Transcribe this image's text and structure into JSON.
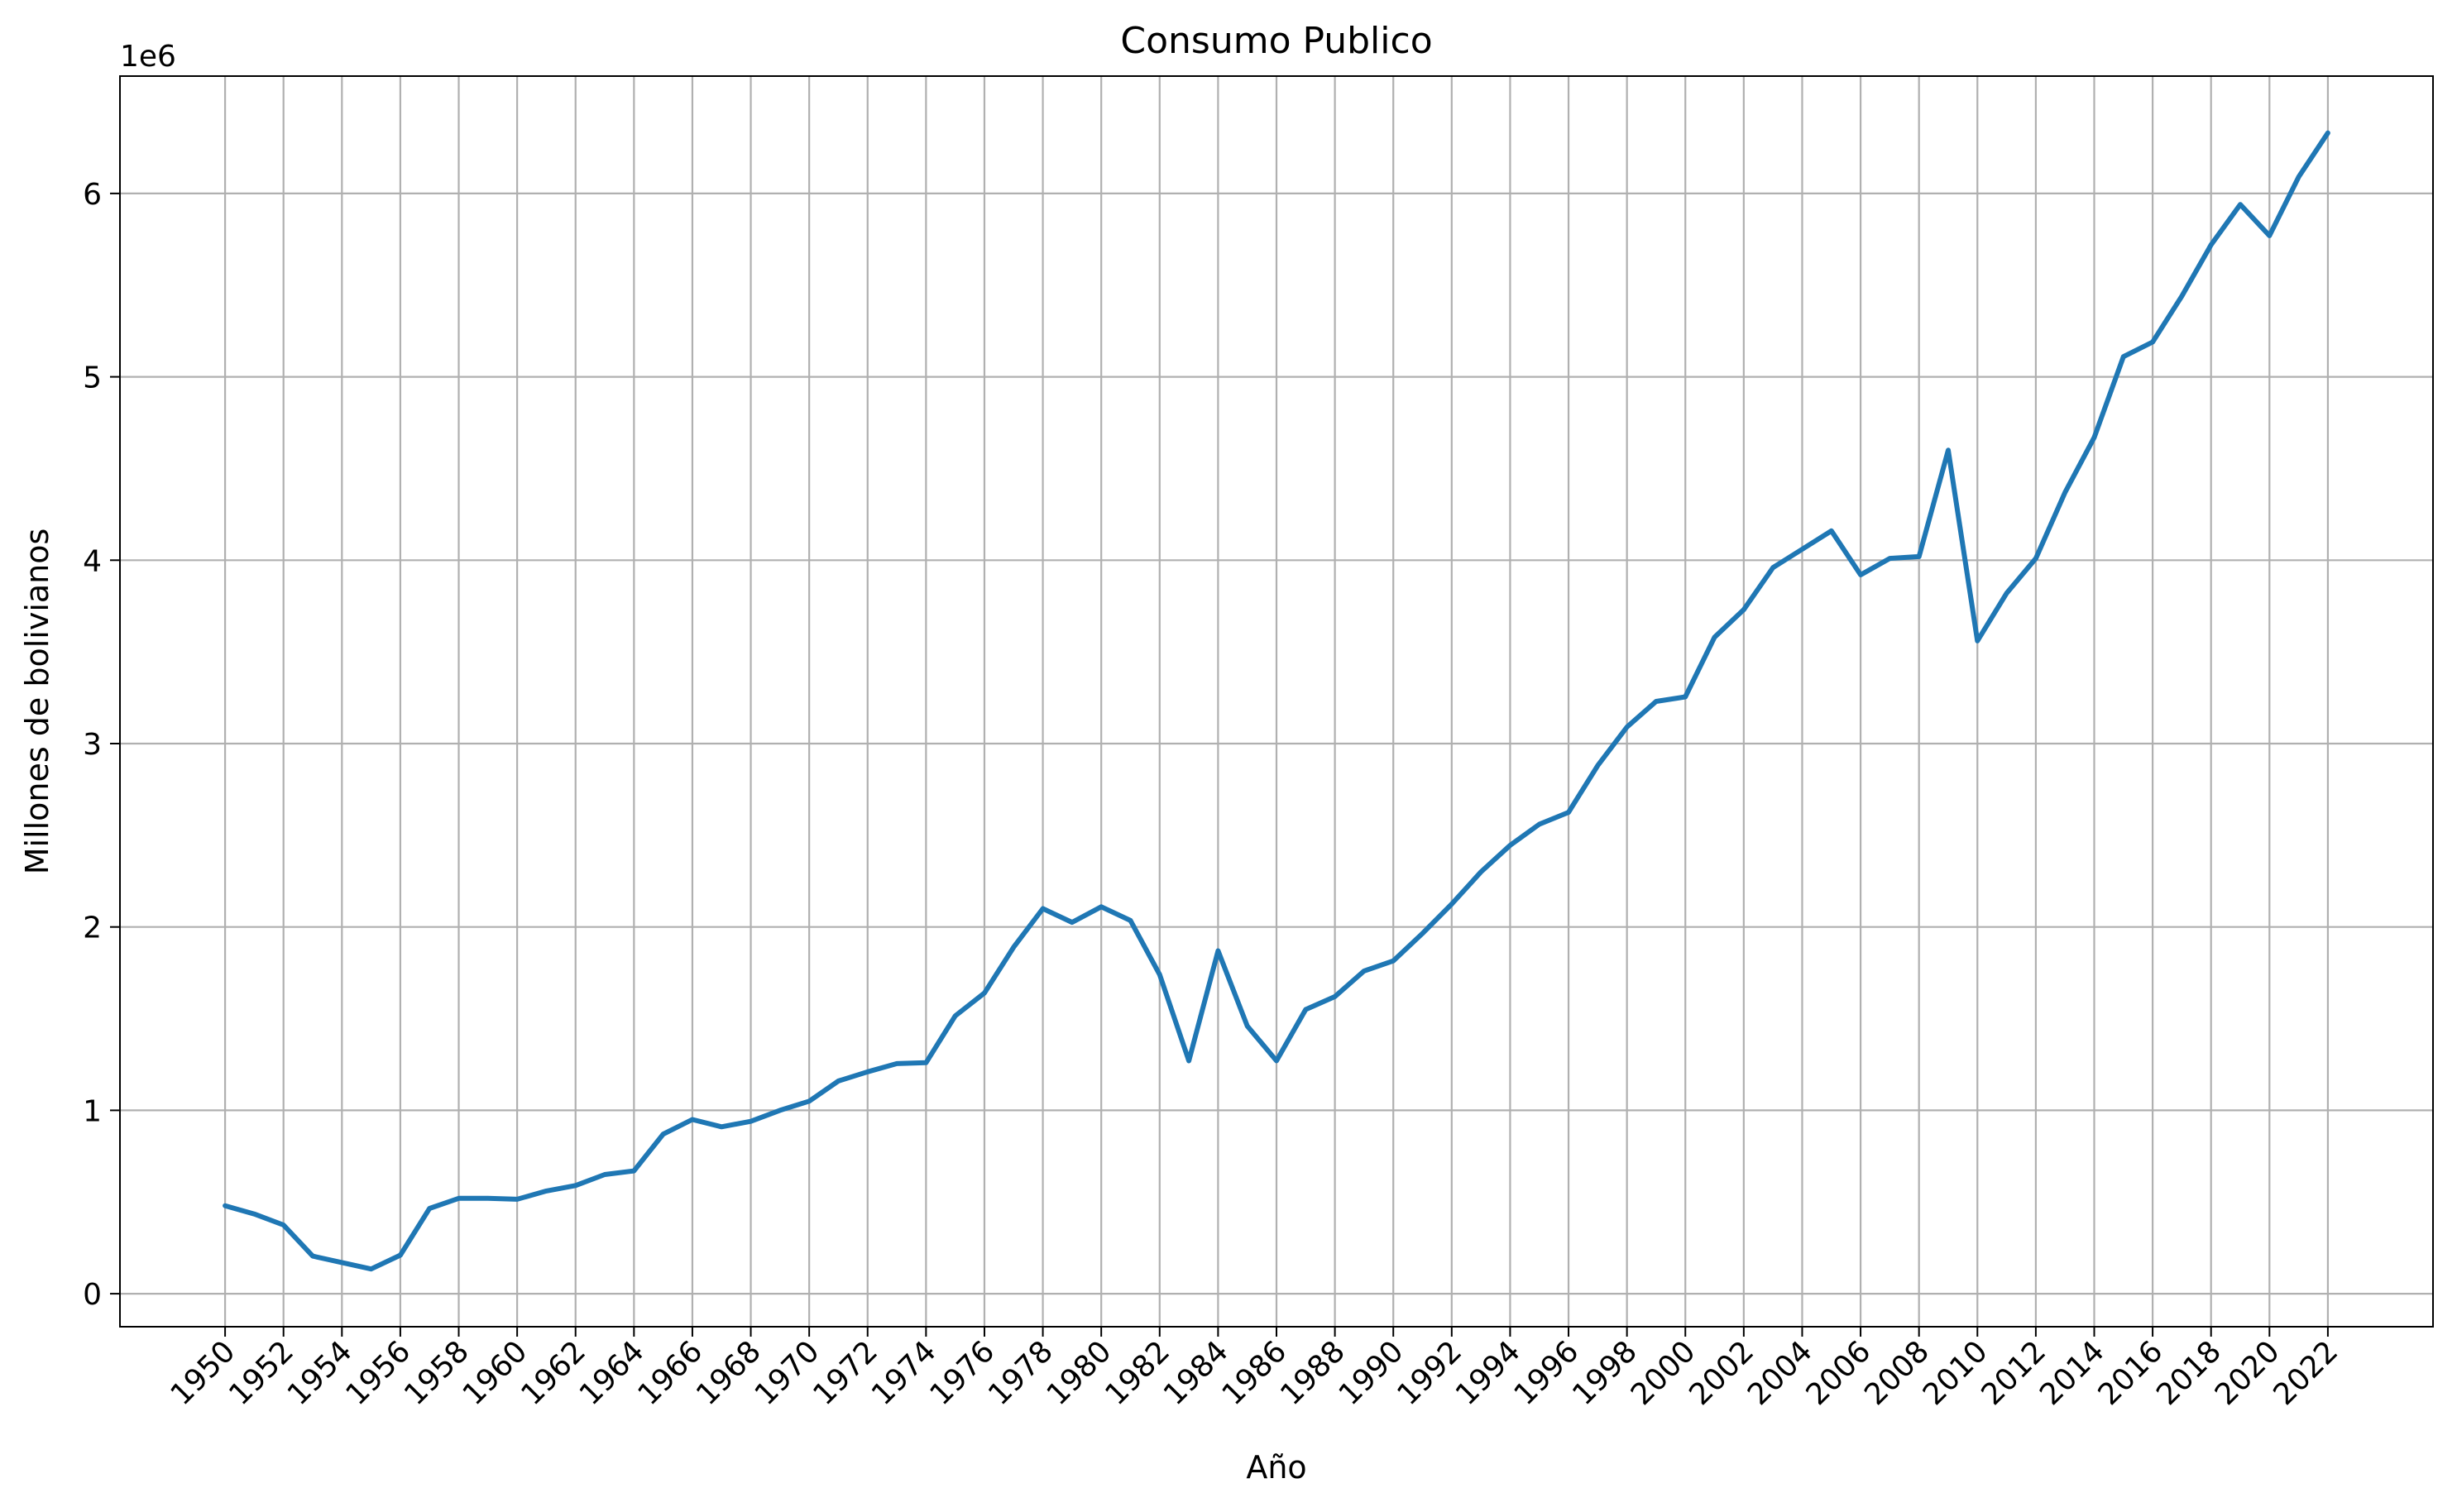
{
  "chart_data": {
    "type": "line",
    "title": "Consumo Publico",
    "xlabel": "Año",
    "ylabel": "Millones de bolivianos",
    "y_offset_label": "1e6",
    "y_scale_factor": 1000000,
    "xlim": [
      1946.4,
      2025.6
    ],
    "ylim": [
      -180000,
      6640000
    ],
    "grid": true,
    "x_ticks": [
      1950,
      1952,
      1954,
      1956,
      1958,
      1960,
      1962,
      1964,
      1966,
      1968,
      1970,
      1972,
      1974,
      1976,
      1978,
      1980,
      1982,
      1984,
      1986,
      1988,
      1990,
      1992,
      1994,
      1996,
      1998,
      2000,
      2002,
      2004,
      2006,
      2008,
      2010,
      2012,
      2014,
      2016,
      2018,
      2020,
      2022
    ],
    "y_ticks": [
      0,
      1000000,
      2000000,
      3000000,
      4000000,
      5000000,
      6000000
    ],
    "y_tick_labels": [
      "0",
      "1",
      "2",
      "3",
      "4",
      "5",
      "6"
    ],
    "x": [
      1950,
      1951,
      1952,
      1953,
      1954,
      1955,
      1956,
      1957,
      1958,
      1959,
      1960,
      1961,
      1962,
      1963,
      1964,
      1965,
      1966,
      1967,
      1968,
      1969,
      1970,
      1971,
      1972,
      1973,
      1974,
      1975,
      1976,
      1977,
      1978,
      1979,
      1980,
      1981,
      1982,
      1983,
      1984,
      1985,
      1986,
      1987,
      1988,
      1989,
      1990,
      1991,
      1992,
      1993,
      1994,
      1995,
      1996,
      1997,
      1998,
      1999,
      2000,
      2001,
      2002,
      2003,
      2004,
      2005,
      2006,
      2007,
      2008,
      2009,
      2010,
      2011,
      2012,
      2013,
      2014,
      2015,
      2016,
      2017,
      2018,
      2019,
      2020,
      2021,
      2022
    ],
    "series": [
      {
        "color": "#1f77b4",
        "values": [
          480000,
          435000,
          375000,
          205000,
          170000,
          135000,
          210000,
          465000,
          520000,
          520000,
          515000,
          560000,
          590000,
          650000,
          670000,
          870000,
          950000,
          910000,
          940000,
          1000000,
          1050000,
          1160000,
          1210000,
          1255000,
          1260000,
          1515000,
          1640000,
          1890000,
          2100000,
          2025000,
          2110000,
          2035000,
          1740000,
          1270000,
          1870000,
          1460000,
          1270000,
          1550000,
          1620000,
          1760000,
          1815000,
          1965000,
          2125000,
          2300000,
          2445000,
          2560000,
          2625000,
          2880000,
          3090000,
          3230000,
          3255000,
          3580000,
          3730000,
          3960000,
          4060000,
          4160000,
          3920000,
          4010000,
          4020000,
          4600000,
          3560000,
          3820000,
          4010000,
          4370000,
          4670000,
          5110000,
          5190000,
          5440000,
          5720000,
          5940000,
          5770000,
          6090000,
          6330000
        ]
      }
    ]
  }
}
